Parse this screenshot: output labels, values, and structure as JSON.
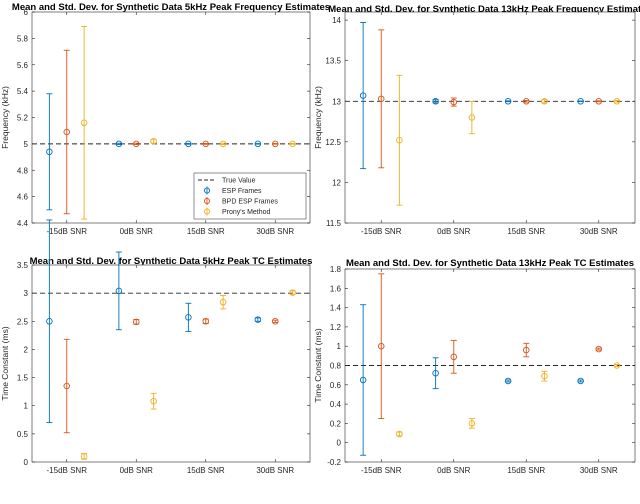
{
  "colors": {
    "ESP Frames": "#0072BD",
    "BPD ESP Frames": "#D95319",
    "Prony's Method": "#EDB120",
    "true": "#262626"
  },
  "chart_data": [
    {
      "type": "scatter",
      "title": "Mean and Std. Dev. for Synthetic Data 5kHz Peak Frequency Estimates",
      "xlabel": "",
      "ylabel": "Frequency (kHz)",
      "categories": [
        "-15dB SNR",
        "0dB SNR",
        "15dB SNR",
        "30dB SNR"
      ],
      "ylim": [
        4.4,
        6
      ],
      "yticks": [
        4.4,
        4.6,
        4.8,
        5,
        5.2,
        5.4,
        5.6,
        5.8,
        6
      ],
      "true_value": 5,
      "legend": [
        "True Value",
        "ESP Frames",
        "BPD ESP Frames",
        "Prony's Method"
      ],
      "legend_position": "bottom-right",
      "series": [
        {
          "name": "ESP Frames",
          "mean": [
            4.94,
            5.0,
            5.0,
            5.0
          ],
          "std": [
            0.44,
            0.005,
            0.003,
            0.002
          ]
        },
        {
          "name": "BPD ESP Frames",
          "mean": [
            5.09,
            5.0,
            5.0,
            5.0
          ],
          "std": [
            0.62,
            0.005,
            0.003,
            0.002
          ]
        },
        {
          "name": "Prony's Method",
          "mean": [
            5.16,
            5.02,
            5.0,
            5.0
          ],
          "std": [
            0.73,
            0.015,
            0.005,
            0.003
          ]
        }
      ]
    },
    {
      "type": "scatter",
      "title": "Mean and Std. Dev. for Synthetic Data 13kHz Peak Frequency Estimates",
      "xlabel": "",
      "ylabel": "Frequency (kHz)",
      "categories": [
        "-15dB SNR",
        "0dB SNR",
        "15dB SNR",
        "30dB SNR"
      ],
      "ylim": [
        11.5,
        14.1
      ],
      "yticks": [
        11.5,
        12,
        12.5,
        13,
        13.5,
        14
      ],
      "true_value": 13,
      "series": [
        {
          "name": "ESP Frames",
          "mean": [
            13.07,
            13.0,
            13.0,
            13.0
          ],
          "std": [
            0.9,
            0.02,
            0.005,
            0.003
          ]
        },
        {
          "name": "BPD ESP Frames",
          "mean": [
            13.03,
            12.99,
            13.0,
            13.0
          ],
          "std": [
            0.85,
            0.05,
            0.01,
            0.005
          ]
        },
        {
          "name": "Prony's Method",
          "mean": [
            12.52,
            12.8,
            13.0,
            13.0
          ],
          "std": [
            0.8,
            0.2,
            0.02,
            0.01
          ]
        }
      ]
    },
    {
      "type": "scatter",
      "title": "Mean and Std. Dev. for Synthetic Data 5kHz Peak TC Estimates",
      "xlabel": "",
      "ylabel": "Time Constant (ms)",
      "categories": [
        "-15dB SNR",
        "0dB SNR",
        "15dB SNR",
        "30dB SNR"
      ],
      "ylim": [
        0,
        3.5
      ],
      "yticks": [
        0,
        0.5,
        1,
        1.5,
        2,
        2.5,
        3,
        3.5
      ],
      "true_value": 3,
      "series": [
        {
          "name": "ESP Frames",
          "mean": [
            2.5,
            3.04,
            2.57,
            2.53
          ],
          "std": [
            1.8,
            0.69,
            0.25,
            0.03
          ]
        },
        {
          "name": "BPD ESP Frames",
          "mean": [
            1.35,
            2.49,
            2.5,
            2.5
          ],
          "std": [
            0.83,
            0.04,
            0.04,
            0.02
          ]
        },
        {
          "name": "Prony's Method",
          "mean": [
            0.1,
            1.08,
            2.84,
            3.01
          ],
          "std": [
            0.05,
            0.14,
            0.12,
            0.03
          ]
        }
      ]
    },
    {
      "type": "scatter",
      "title": "Mean and Std. Dev. for Synthetic Data 13kHz Peak TC Estimates",
      "xlabel": "",
      "ylabel": "Time Constant (ms)",
      "categories": [
        "-15dB SNR",
        "0dB SNR",
        "15dB SNR",
        "30dB SNR"
      ],
      "ylim": [
        -0.2,
        1.8
      ],
      "yticks": [
        -0.2,
        0,
        0.2,
        0.4,
        0.6,
        0.8,
        1,
        1.2,
        1.4,
        1.6,
        1.8
      ],
      "true_value": 0.8,
      "series": [
        {
          "name": "ESP Frames",
          "mean": [
            0.65,
            0.72,
            0.64,
            0.64
          ],
          "std": [
            0.78,
            0.16,
            0.01,
            0.01
          ]
        },
        {
          "name": "BPD ESP Frames",
          "mean": [
            1.0,
            0.89,
            0.96,
            0.97
          ],
          "std": [
            0.75,
            0.17,
            0.07,
            0.01
          ]
        },
        {
          "name": "Prony's Method",
          "mean": [
            0.09,
            0.2,
            0.69,
            0.8
          ],
          "std": [
            0.02,
            0.05,
            0.05,
            0.01
          ]
        }
      ]
    }
  ]
}
